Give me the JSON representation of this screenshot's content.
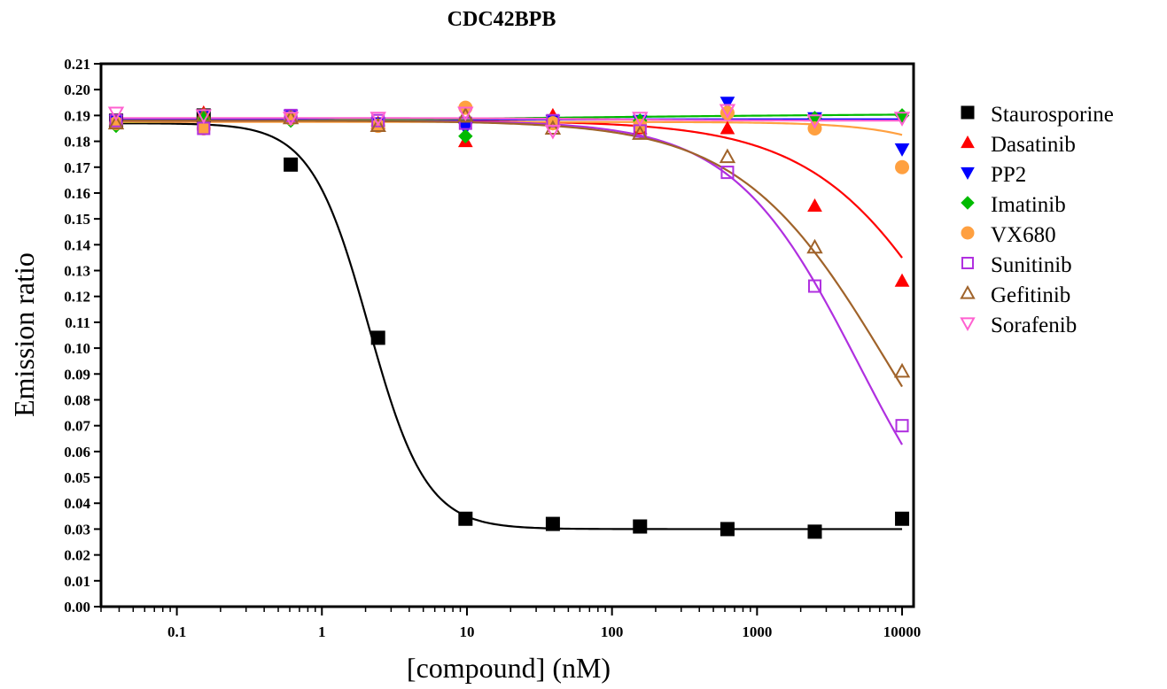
{
  "chart_data": {
    "type": "scatter",
    "title": "CDC42BPB",
    "xlabel": "[compound] (nM)",
    "ylabel": "Emission ratio",
    "x_scale": "log",
    "xlim": [
      0.03,
      12000
    ],
    "ylim": [
      0.0,
      0.21
    ],
    "x_ticks": [
      0.1,
      1,
      10,
      100,
      1000,
      10000
    ],
    "x_tick_labels": [
      "0.1",
      "1",
      "10",
      "100",
      "1000",
      "10000"
    ],
    "y_ticks": [
      0.0,
      0.01,
      0.02,
      0.03,
      0.04,
      0.05,
      0.06,
      0.07,
      0.08,
      0.09,
      0.1,
      0.11,
      0.12,
      0.13,
      0.14,
      0.15,
      0.16,
      0.17,
      0.18,
      0.19,
      0.2,
      0.21
    ],
    "y_tick_labels": [
      "0.00",
      "0.01",
      "0.02",
      "0.03",
      "0.04",
      "0.05",
      "0.06",
      "0.07",
      "0.08",
      "0.09",
      "0.10",
      "0.11",
      "0.12",
      "0.13",
      "0.14",
      "0.15",
      "0.16",
      "0.17",
      "0.18",
      "0.19",
      "0.20",
      "0.21"
    ],
    "grid": false,
    "legend_position": "right",
    "x": [
      0.0381,
      0.153,
      0.61,
      2.44,
      9.77,
      39.1,
      156,
      625,
      2500,
      10000
    ],
    "series": [
      {
        "name": "Staurosporine",
        "color": "#000000",
        "marker": "square-filled",
        "values": [
          0.188,
          0.19,
          0.171,
          0.104,
          0.034,
          0.032,
          0.031,
          0.03,
          0.029,
          0.034
        ],
        "fit": {
          "top": 0.187,
          "bottom": 0.03,
          "ic50": 2.1,
          "hill": 2.2
        }
      },
      {
        "name": "Dasatinib",
        "color": "#ff0000",
        "marker": "triangle-up-filled",
        "values": [
          0.188,
          0.191,
          0.189,
          0.187,
          0.18,
          0.19,
          0.185,
          0.185,
          0.155,
          0.126
        ],
        "fit": {
          "top": 0.188,
          "bottom": 0.0,
          "ic50": 30000,
          "hill": 0.85
        }
      },
      {
        "name": "PP2",
        "color": "#0000ff",
        "marker": "triangle-down-filled",
        "values": [
          0.188,
          0.19,
          0.19,
          0.187,
          0.185,
          0.188,
          0.188,
          0.195,
          0.189,
          0.177
        ],
        "fit": {
          "top": 0.1885,
          "bottom": 0.1885,
          "ic50": 1000,
          "hill": 1.0
        }
      },
      {
        "name": "Imatinib",
        "color": "#00bb00",
        "marker": "diamond-filled",
        "values": [
          0.186,
          0.189,
          0.188,
          0.186,
          0.182,
          0.187,
          0.188,
          0.191,
          0.189,
          0.19
        ],
        "fit": {
          "top": 0.1865,
          "bottom": 0.191,
          "ic50": 10,
          "hill": 0.25
        }
      },
      {
        "name": "VX680",
        "color": "#ffa040",
        "marker": "circle-filled",
        "values": [
          0.187,
          0.185,
          0.189,
          0.186,
          0.193,
          0.187,
          0.186,
          0.191,
          0.185,
          0.17
        ],
        "fit": {
          "top": 0.1875,
          "bottom": 0.0,
          "ic50": 200000,
          "hill": 1.2
        }
      },
      {
        "name": "Sunitinib",
        "color": "#b030e0",
        "marker": "square-open",
        "values": [
          0.188,
          0.185,
          0.19,
          0.188,
          0.187,
          0.188,
          0.184,
          0.168,
          0.124,
          0.07
        ],
        "fit": {
          "top": 0.188,
          "bottom": 0.0,
          "ic50": 5000,
          "hill": 1.0
        }
      },
      {
        "name": "Gefitinib",
        "color": "#a0632a",
        "marker": "triangle-up-open",
        "values": [
          0.187,
          0.19,
          0.189,
          0.186,
          0.19,
          0.185,
          0.183,
          0.174,
          0.139,
          0.091
        ],
        "fit": {
          "top": 0.188,
          "bottom": 0.0,
          "ic50": 8000,
          "hill": 0.85
        }
      },
      {
        "name": "Sorafenib",
        "color": "#ff60d0",
        "marker": "triangle-down-open",
        "values": [
          0.191,
          0.19,
          0.189,
          0.189,
          0.191,
          0.184,
          0.189,
          0.192,
          0.188,
          0.189
        ],
        "fit": {
          "top": 0.189,
          "bottom": 0.188,
          "ic50": 100,
          "hill": 1.0
        }
      }
    ]
  }
}
